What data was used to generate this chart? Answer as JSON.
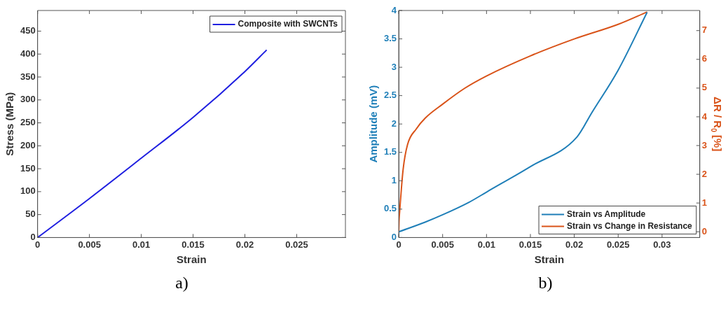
{
  "chart_data": [
    {
      "type": "line",
      "xlabel": "Strain",
      "ylabel": "Stress (MPa)",
      "legend": "top right",
      "annotations": [
        "a)"
      ],
      "xlim": [
        0,
        0.0297
      ],
      "xticks": [
        0,
        0.005,
        0.01,
        0.015,
        0.02,
        0.025
      ],
      "ylim": [
        0,
        495
      ],
      "yticks": [
        0,
        50,
        100,
        150,
        200,
        250,
        300,
        350,
        400,
        450
      ],
      "series": [
        {
          "name": "Composite with SWCNTs",
          "color": "#2020e0",
          "x": [
            0,
            0.005,
            0.01,
            0.015,
            0.02,
            0.0221
          ],
          "values": [
            0,
            85,
            173,
            262,
            362,
            409
          ]
        }
      ]
    },
    {
      "type": "line",
      "xlabel": "Strain",
      "ylabel": "Amplitude (mV)",
      "y2label": "ΔR / R$_{0}$ [%]",
      "legend": "bottom right",
      "annotations": [
        "b)"
      ],
      "xlim": [
        0,
        0.0343
      ],
      "xticks": [
        0,
        0.005,
        0.01,
        0.015,
        0.02,
        0.025,
        0.03
      ],
      "ylim": [
        0,
        4
      ],
      "yticks": [
        0,
        0.5,
        1,
        1.5,
        2,
        2.5,
        3,
        3.5,
        4
      ],
      "y2lim": [
        -0.2,
        7.7
      ],
      "y2ticks": [
        0,
        1,
        2,
        3,
        4,
        5,
        6,
        7
      ],
      "series": [
        {
          "name": "Strain vs Amplitude",
          "color": "#1f7fb8",
          "x": [
            0,
            0.003,
            0.005,
            0.008,
            0.01,
            0.015,
            0.0203,
            0.022,
            0.025,
            0.0283
          ],
          "values": [
            0.1,
            0.27,
            0.4,
            0.62,
            0.8,
            1.25,
            1.77,
            2.2,
            2.95,
            3.97
          ]
        },
        {
          "name": "Strain vs Change in Resistance",
          "color": "#d95319",
          "axis": "y2",
          "x": [
            0,
            3e-05,
            0.0001,
            0.0005,
            0.001,
            0.002,
            0.003,
            0.005,
            0.0075,
            0.01,
            0.015,
            0.02,
            0.025,
            0.0283
          ],
          "values": [
            0,
            0.35,
            0.68,
            2.17,
            3.03,
            3.58,
            3.95,
            4.44,
            4.99,
            5.42,
            6.12,
            6.71,
            7.22,
            7.65
          ]
        }
      ]
    }
  ]
}
